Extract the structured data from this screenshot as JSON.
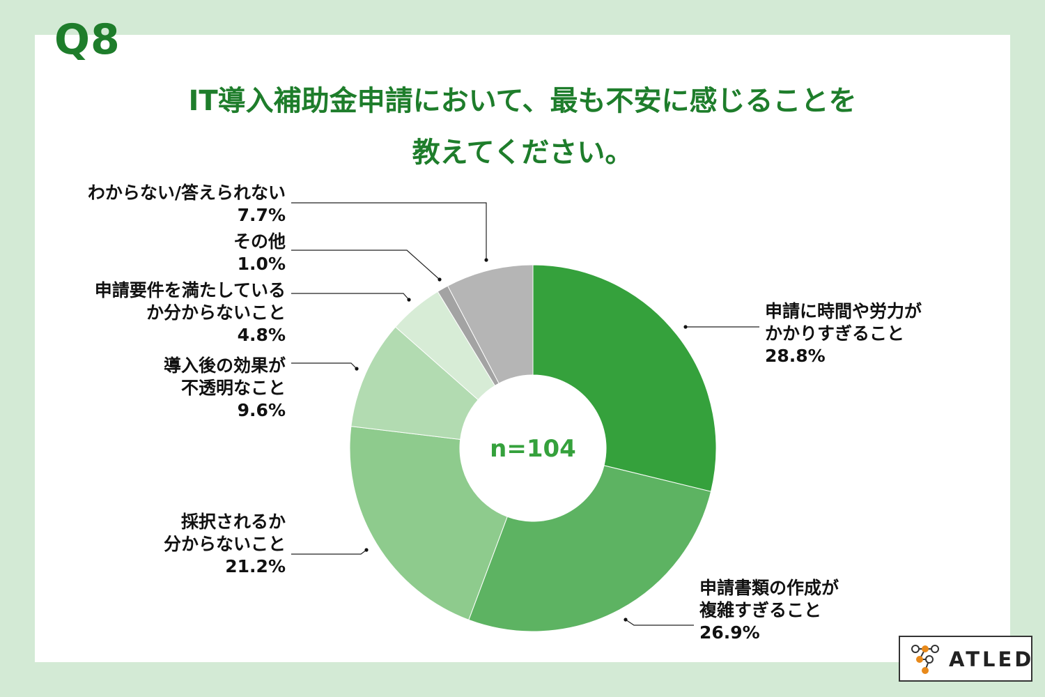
{
  "question_number": "Q8",
  "title_line1": "IT導入補助金申請において、最も不安に感じることを",
  "title_line2": "教えてください。",
  "logo_text": "ATLED",
  "colors": {
    "background": "#d3ead5",
    "title": "#1e7d2b",
    "accent": "#35a13c"
  },
  "chart_data": {
    "type": "pie",
    "variant": "donut",
    "center_label": "n=104",
    "slices": [
      {
        "label_lines": [
          "申請に時間や労力が",
          "かかりすぎること"
        ],
        "value_text": "28.8%",
        "value": 28.8,
        "color": "#35a13c"
      },
      {
        "label_lines": [
          "申請書類の作成が",
          "複雑すぎること"
        ],
        "value_text": "26.9%",
        "value": 26.9,
        "color": "#5db362"
      },
      {
        "label_lines": [
          "採択されるか",
          "分からないこと"
        ],
        "value_text": "21.2%",
        "value": 21.2,
        "color": "#8ecb8d"
      },
      {
        "label_lines": [
          "導入後の効果が",
          "不透明なこと"
        ],
        "value_text": "9.6%",
        "value": 9.6,
        "color": "#b2dbb1"
      },
      {
        "label_lines": [
          "申請要件を満たしている",
          "か分からないこと"
        ],
        "value_text": "4.8%",
        "value": 4.8,
        "color": "#d7ecd6"
      },
      {
        "label_lines": [
          "その他"
        ],
        "value_text": "1.0%",
        "value": 1.0,
        "color": "#a3a3a3"
      },
      {
        "label_lines": [
          "わからない/答えられない"
        ],
        "value_text": "7.7%",
        "value": 7.7,
        "color": "#b5b5b5"
      }
    ]
  }
}
